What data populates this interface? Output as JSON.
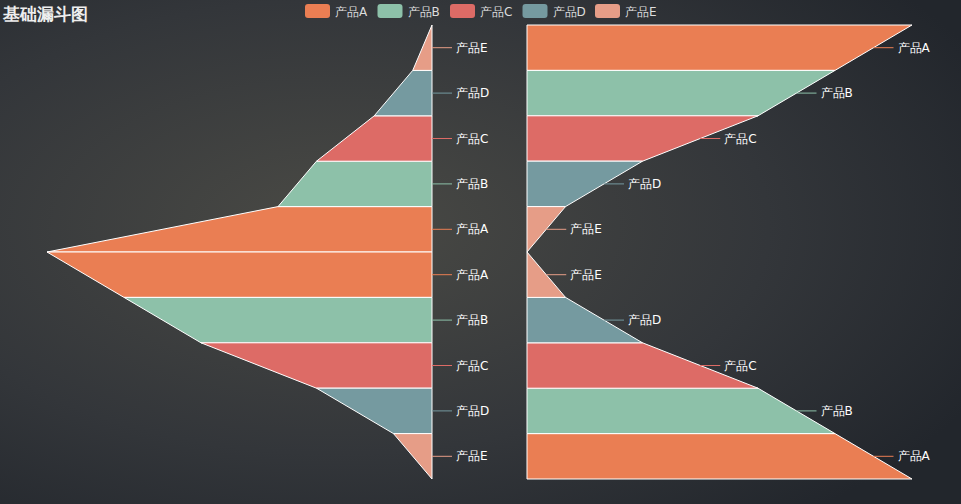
{
  "chart_data": {
    "type": "funnel",
    "title": "基础漏斗图",
    "categories": [
      "产品A",
      "产品B",
      "产品C",
      "产品D",
      "产品E"
    ],
    "colors": [
      "#ea7e53",
      "#8dc1a9",
      "#dd6b66",
      "#759aa0",
      "#e69d87"
    ],
    "legend": "top",
    "series": [
      {
        "values": [
          100,
          40,
          30,
          15,
          5
        ]
      },
      {
        "values": [
          100,
          80,
          60,
          30,
          10
        ]
      },
      {
        "values": [
          100,
          80,
          60,
          30,
          10
        ]
      },
      {
        "values": [
          100,
          80,
          60,
          30,
          10
        ]
      }
    ]
  }
}
